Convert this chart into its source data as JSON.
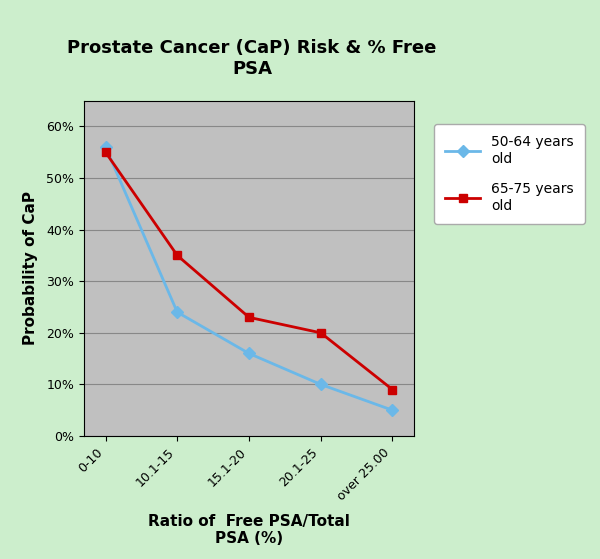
{
  "title": "Prostate Cancer (CaP) Risk & % Free\nPSA",
  "xlabel": "Ratio of  Free PSA/Total\nPSA (%)",
  "ylabel": "Probability of CaP",
  "categories": [
    "0-10",
    "10.1-15",
    "15.1-20",
    "20.1-25",
    "over 25.00"
  ],
  "series_50_64": [
    0.56,
    0.24,
    0.16,
    0.1,
    0.05
  ],
  "series_65_75": [
    0.55,
    0.35,
    0.23,
    0.2,
    0.09
  ],
  "color_50_64": "#6BB8E8",
  "color_65_75": "#CC0000",
  "marker_50_64": "D",
  "marker_65_75": "s",
  "legend_50_64": "50-64 years\nold",
  "legend_65_75": "65-75 years\nold",
  "ylim": [
    0.0,
    0.65
  ],
  "yticks": [
    0.0,
    0.1,
    0.2,
    0.3,
    0.4,
    0.5,
    0.6
  ],
  "background_color": "#CCEECC",
  "plot_bg_color": "#C0C0C0",
  "title_fontsize": 13,
  "axis_label_fontsize": 11,
  "tick_fontsize": 9,
  "legend_fontsize": 10
}
